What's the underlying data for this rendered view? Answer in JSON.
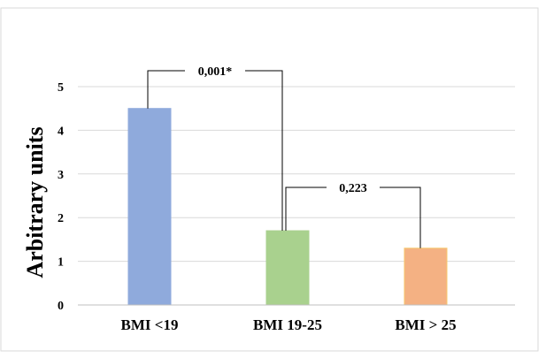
{
  "chart_data": {
    "type": "bar",
    "categories": [
      "BMI <19",
      "BMI 19-25",
      "BMI > 25"
    ],
    "values": [
      4.5,
      1.7,
      1.3
    ],
    "colors": [
      "#8FAADC",
      "#A9D18E",
      "#F4B183"
    ],
    "edge_colors": [
      "#8FAADC",
      "#A9D18E",
      "#F7C66B"
    ],
    "ylabel": "Arbitrary units",
    "yticks": [
      "0",
      "1",
      "2",
      "3",
      "4",
      "5"
    ],
    "ylim": [
      0,
      5
    ],
    "grid": true,
    "legend": "none",
    "comparisons": [
      {
        "from": 0,
        "to": 1,
        "label": "0,001*"
      },
      {
        "from": 1,
        "to": 2,
        "label": "0,223"
      }
    ]
  }
}
